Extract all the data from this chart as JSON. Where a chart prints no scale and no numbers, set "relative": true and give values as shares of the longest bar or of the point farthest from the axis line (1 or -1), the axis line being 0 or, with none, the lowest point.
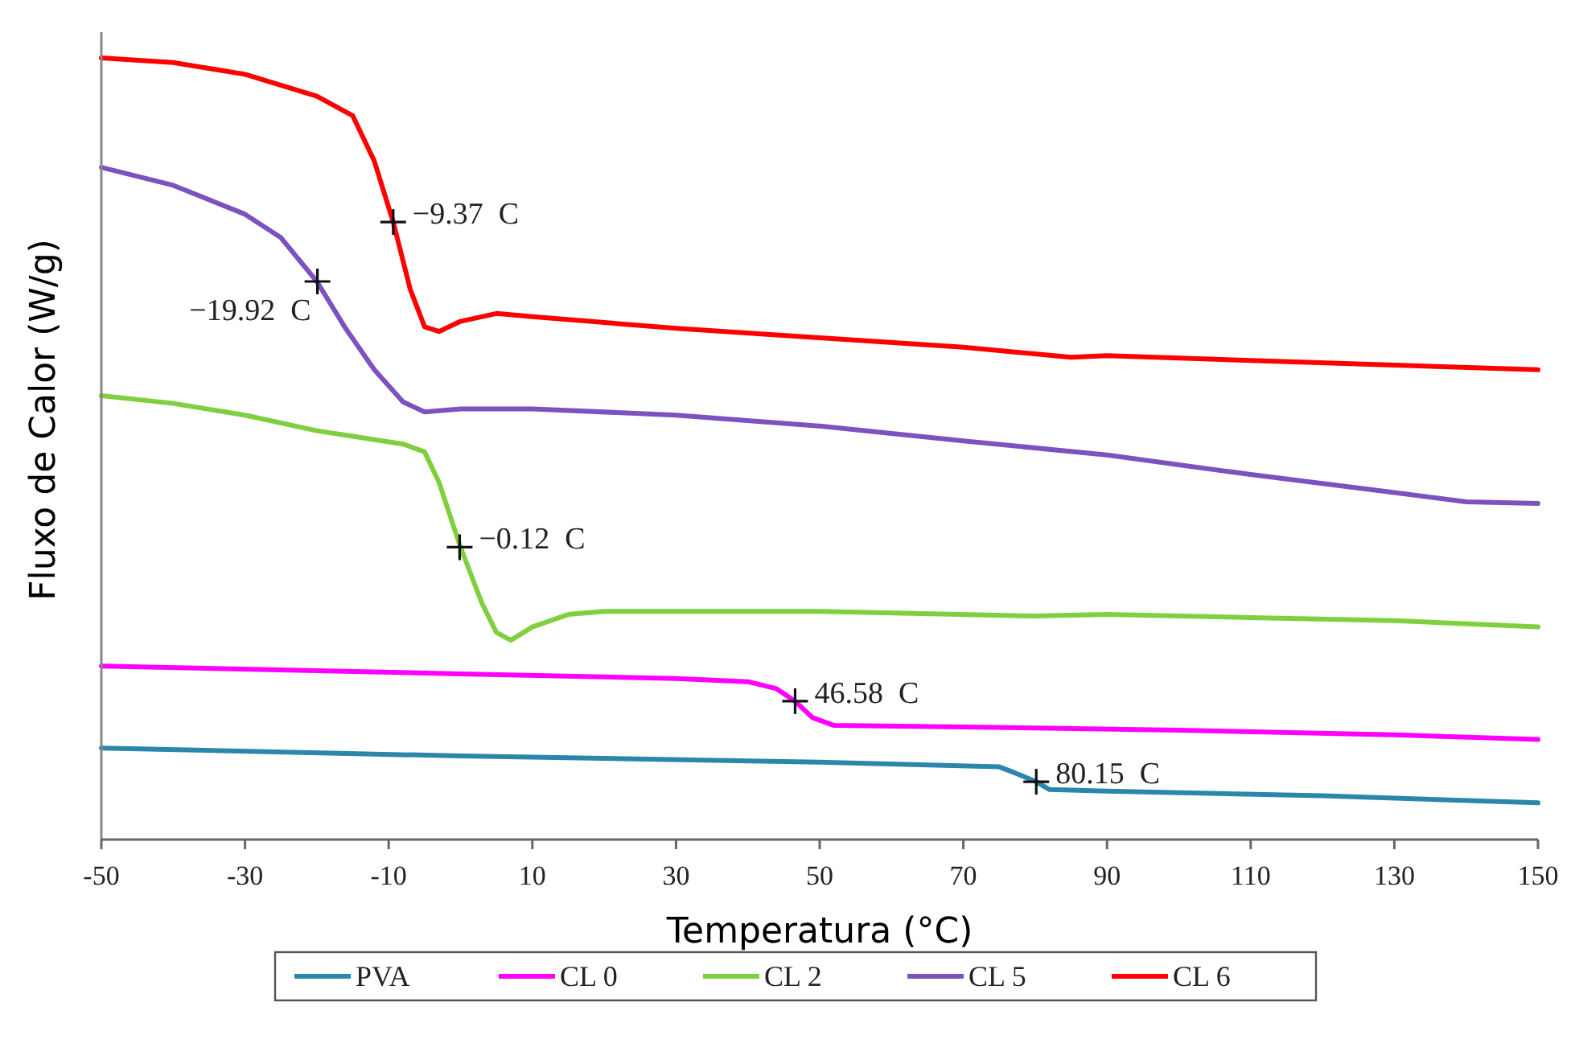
{
  "chart_data": {
    "type": "line",
    "relative": true,
    "xlabel": "Temperatura (°C)",
    "ylabel": "Fluxo de Calor (W/g)",
    "xlim": [
      -50,
      150
    ],
    "xticks": [
      -50,
      -30,
      -10,
      10,
      30,
      50,
      70,
      90,
      110,
      130,
      150
    ],
    "legend": "bottom",
    "grid": false,
    "marker": "none",
    "line_style": "solid",
    "series": [
      {
        "name": "PVA",
        "color": "#2a86aa",
        "x": [
          -50,
          0,
          50,
          75,
          77,
          80.15,
          82,
          90,
          120,
          150
        ],
        "values": [
          0.117,
          0.107,
          0.099,
          0.093,
          0.086,
          0.074,
          0.064,
          0.062,
          0.056,
          0.047
        ]
      },
      {
        "name": "CL 0",
        "color": "#ff00ff",
        "x": [
          -50,
          0,
          30,
          40,
          44,
          46.58,
          49,
          52,
          70,
          100,
          130,
          150
        ],
        "values": [
          0.222,
          0.212,
          0.206,
          0.202,
          0.193,
          0.177,
          0.156,
          0.146,
          0.144,
          0.14,
          0.134,
          0.128
        ]
      },
      {
        "name": "CL 2",
        "color": "#7fcf3f",
        "x": [
          -50,
          -40,
          -30,
          -20,
          -15,
          -8,
          -5,
          -3,
          0,
          3,
          5,
          7,
          10,
          15,
          20,
          50,
          80,
          90,
          110,
          130,
          150
        ],
        "values": [
          0.568,
          0.558,
          0.543,
          0.523,
          0.516,
          0.506,
          0.496,
          0.457,
          0.374,
          0.302,
          0.265,
          0.255,
          0.272,
          0.288,
          0.292,
          0.292,
          0.286,
          0.288,
          0.284,
          0.28,
          0.272
        ]
      },
      {
        "name": "CL 5",
        "color": "#7b52c0",
        "x": [
          -50,
          -40,
          -30,
          -25,
          -20,
          -16,
          -12,
          -8,
          -5,
          0,
          10,
          30,
          50,
          70,
          90,
          110,
          130,
          140,
          150
        ],
        "values": [
          0.86,
          0.837,
          0.8,
          0.77,
          0.714,
          0.654,
          0.601,
          0.56,
          0.547,
          0.551,
          0.551,
          0.543,
          0.529,
          0.51,
          0.492,
          0.467,
          0.444,
          0.432,
          0.43
        ]
      },
      {
        "name": "CL 6",
        "color": "#ff0000",
        "x": [
          -50,
          -40,
          -30,
          -20,
          -15,
          -12,
          -9.37,
          -7,
          -5,
          -3,
          0,
          5,
          10,
          30,
          50,
          70,
          85,
          90,
          110,
          130,
          150
        ],
        "values": [
          1.0,
          0.994,
          0.979,
          0.951,
          0.926,
          0.868,
          0.79,
          0.704,
          0.656,
          0.65,
          0.663,
          0.673,
          0.669,
          0.654,
          0.642,
          0.63,
          0.617,
          0.619,
          0.613,
          0.607,
          0.601
        ]
      }
    ],
    "annotations": [
      {
        "text": "−9.37  C",
        "x": -9.37,
        "y": 0.79
      },
      {
        "text": "−19.92  C",
        "x": -19.92,
        "y": 0.714
      },
      {
        "text": "−0.12  C",
        "x": -0.12,
        "y": 0.374
      },
      {
        "text": "46.58  C",
        "x": 46.58,
        "y": 0.177
      },
      {
        "text": "80.15  C",
        "x": 80.15,
        "y": 0.074
      }
    ]
  }
}
